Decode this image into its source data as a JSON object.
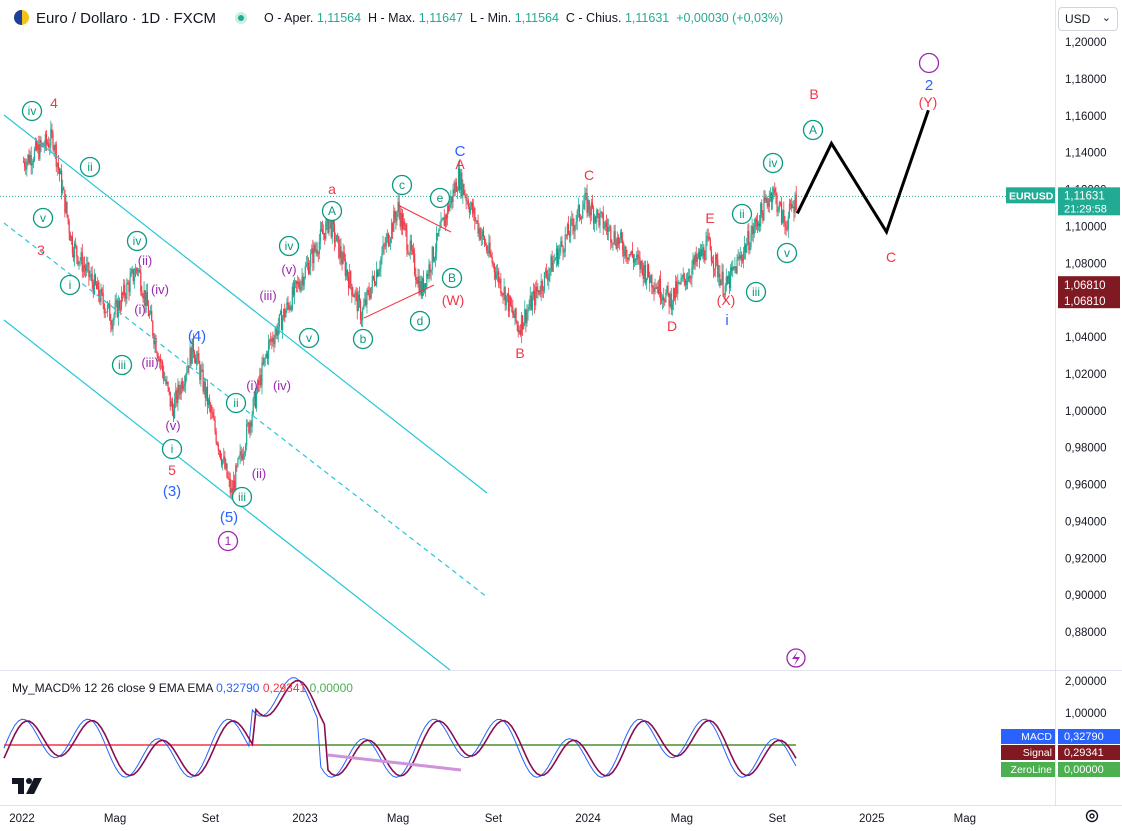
{
  "header": {
    "symbol_title": "Euro / Dollaro · 1D · FXCM",
    "ohlc": {
      "open_label": "O - Aper.",
      "open_value": "1,11564",
      "high_label": "H - Max.",
      "high_value": "1,11647",
      "low_label": "L - Min.",
      "low_value": "1,11564",
      "close_label": "C - Chius.",
      "close_value": "1,11631",
      "change": "+0,00030 (+0,03%)"
    },
    "currency": "USD"
  },
  "colors": {
    "up": "#22ab94",
    "down": "#f23645",
    "channel": "#26c6da",
    "wave_green": "#089981",
    "wave_red": "#f23645",
    "wave_blue": "#2962ff",
    "wave_purple": "#9c27b0",
    "macd": "#2962ff",
    "signal": "#880e4f",
    "zero": "#4caf50",
    "hist_line": "#f23645"
  },
  "price_axis": {
    "ticks": [
      "1,20000",
      "1,18000",
      "1,16000",
      "1,14000",
      "1,12000",
      "1,10000",
      "1,08000",
      "1,06000",
      "1,04000",
      "1,02000",
      "1,00000",
      "0,98000",
      "0,96000",
      "0,94000",
      "0,92000",
      "0,90000",
      "0,88000"
    ],
    "last_label": "EURUSD",
    "last_price": "1,11631",
    "countdown": "21:29:58",
    "marker_1": "1,06810",
    "marker_2": "1,06810"
  },
  "time_axis": {
    "labels": [
      "2022",
      "Mag",
      "Set",
      "2023",
      "Mag",
      "Set",
      "2024",
      "Mag",
      "Set",
      "2025",
      "Mag"
    ]
  },
  "macd": {
    "title": "My_MACD% 12 26 close 9 EMA EMA",
    "v1": "0,32790",
    "v2": "0,29341",
    "v3": "0,00000",
    "ticks": [
      "2,00000",
      "1,00000"
    ],
    "tag_macd": "MACD",
    "tag_macd_val": "0,32790",
    "tag_signal": "Signal",
    "tag_signal_val": "0,29341",
    "tag_zero": "ZeroLine",
    "tag_zero_val": "0,00000"
  },
  "chart_data": {
    "type": "candlestick",
    "symbol": "EURUSD",
    "timeframe": "1D",
    "ylim": [
      0.87,
      1.21
    ],
    "x_range": [
      "2022-01",
      "2025-06"
    ],
    "close_path": [
      {
        "date": "2022-01-03",
        "price": 1.135
      },
      {
        "date": "2022-02-10",
        "price": 1.148
      },
      {
        "date": "2022-03-07",
        "price": 1.09
      },
      {
        "date": "2022-04-27",
        "price": 1.05
      },
      {
        "date": "2022-05-30",
        "price": 1.078
      },
      {
        "date": "2022-07-14",
        "price": 1.0
      },
      {
        "date": "2022-08-10",
        "price": 1.035
      },
      {
        "date": "2022-09-28",
        "price": 0.955
      },
      {
        "date": "2022-11-15",
        "price": 1.035
      },
      {
        "date": "2023-02-01",
        "price": 1.103
      },
      {
        "date": "2023-03-15",
        "price": 1.052
      },
      {
        "date": "2023-05-01",
        "price": 1.11
      },
      {
        "date": "2023-05-31",
        "price": 1.065
      },
      {
        "date": "2023-07-18",
        "price": 1.127
      },
      {
        "date": "2023-10-03",
        "price": 1.045
      },
      {
        "date": "2023-12-28",
        "price": 1.113
      },
      {
        "date": "2024-04-16",
        "price": 1.06
      },
      {
        "date": "2024-06-04",
        "price": 1.09
      },
      {
        "date": "2024-06-26",
        "price": 1.066
      },
      {
        "date": "2024-08-26",
        "price": 1.12
      },
      {
        "date": "2024-09-11",
        "price": 1.101
      },
      {
        "date": "2024-09-27",
        "price": 1.1163
      }
    ],
    "projection": [
      {
        "date": "2024-09-27",
        "price": 1.107
      },
      {
        "date": "2024-11-10",
        "price": 1.145
      },
      {
        "date": "2025-01-20",
        "price": 1.097
      },
      {
        "date": "2025-03-15",
        "price": 1.163
      }
    ],
    "wave_labels": [
      "iv",
      "4",
      "v",
      "3",
      "i",
      "ii",
      "iii",
      "iv",
      "(ii)",
      "(i)",
      "(iv)",
      "(iii)",
      "(v)",
      "5",
      "(3)",
      "(4)",
      "i",
      "ii",
      "(i)",
      "(ii)",
      "(iv)",
      "(iii)",
      "(5)",
      "1",
      "iii",
      "(v)",
      "iv",
      "v",
      "A",
      "a",
      "b",
      "c",
      "d",
      "e",
      "B",
      "(W)",
      "C",
      "A",
      "B",
      "C",
      "D",
      "E",
      "(X)",
      "i",
      "ii",
      "iii",
      "iv",
      "v",
      "A",
      "B",
      "C",
      "(Y)",
      "2"
    ]
  }
}
